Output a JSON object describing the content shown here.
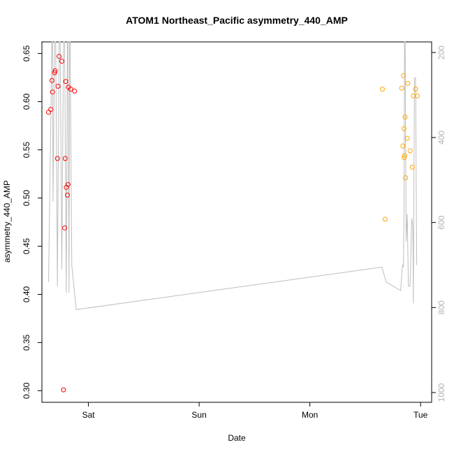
{
  "chart_data": {
    "type": "scatter",
    "title": "ATOM1 Northeast_Pacific asymmetry_440_AMP",
    "xlabel": "Date",
    "ylabel": "asymmetry_440_AMP",
    "x_tick_labels": [
      "Sat",
      "Sun",
      "Mon",
      "Tue"
    ],
    "x_ticks": [
      1.0,
      2.0,
      3.0,
      4.0
    ],
    "xlim": [
      0.58,
      4.1
    ],
    "ylim": [
      0.288,
      0.662
    ],
    "y_ticks": [
      0.3,
      0.35,
      0.4,
      0.45,
      0.5,
      0.55,
      0.6,
      0.65
    ],
    "y_tick_labels": [
      "0.30",
      "0.35",
      "0.40",
      "0.45",
      "0.50",
      "0.55",
      "0.60",
      "0.65"
    ],
    "y2_lim": [
      1023,
      175
    ],
    "y2_ticks": [
      200,
      400,
      600,
      800,
      1000
    ],
    "y2_tick_labels": [
      "200",
      "400",
      "600",
      "800",
      "1000"
    ],
    "grid": false,
    "series": [
      {
        "color": "#ff0000",
        "points": [
          {
            "x": 0.64,
            "y": 0.589
          },
          {
            "x": 0.66,
            "y": 0.592
          },
          {
            "x": 0.67,
            "y": 0.622
          },
          {
            "x": 0.675,
            "y": 0.61
          },
          {
            "x": 0.695,
            "y": 0.63
          },
          {
            "x": 0.7,
            "y": 0.632
          },
          {
            "x": 0.72,
            "y": 0.541
          },
          {
            "x": 0.725,
            "y": 0.616
          },
          {
            "x": 0.735,
            "y": 0.647
          },
          {
            "x": 0.76,
            "y": 0.642
          },
          {
            "x": 0.775,
            "y": 0.301
          },
          {
            "x": 0.785,
            "y": 0.469
          },
          {
            "x": 0.79,
            "y": 0.541
          },
          {
            "x": 0.795,
            "y": 0.621
          },
          {
            "x": 0.8,
            "y": 0.511
          },
          {
            "x": 0.81,
            "y": 0.503
          },
          {
            "x": 0.815,
            "y": 0.514
          },
          {
            "x": 0.82,
            "y": 0.615
          },
          {
            "x": 0.84,
            "y": 0.613
          },
          {
            "x": 0.875,
            "y": 0.611
          }
        ]
      },
      {
        "color": "#ffa500",
        "points": [
          {
            "x": 3.655,
            "y": 0.613
          },
          {
            "x": 3.68,
            "y": 0.478
          },
          {
            "x": 3.83,
            "y": 0.614
          },
          {
            "x": 3.84,
            "y": 0.554
          },
          {
            "x": 3.845,
            "y": 0.627
          },
          {
            "x": 3.85,
            "y": 0.572
          },
          {
            "x": 3.853,
            "y": 0.542
          },
          {
            "x": 3.856,
            "y": 0.544
          },
          {
            "x": 3.86,
            "y": 0.584
          },
          {
            "x": 3.865,
            "y": 0.521
          },
          {
            "x": 3.88,
            "y": 0.562
          },
          {
            "x": 3.885,
            "y": 0.619
          },
          {
            "x": 3.905,
            "y": 0.549
          },
          {
            "x": 3.925,
            "y": 0.532
          },
          {
            "x": 3.935,
            "y": 0.606
          },
          {
            "x": 3.955,
            "y": 0.613
          },
          {
            "x": 3.97,
            "y": 0.606
          }
        ]
      }
    ],
    "secondary_line": {
      "color": "#bebebe",
      "points": [
        [
          0.64,
          740
        ],
        [
          0.67,
          175
        ],
        [
          0.675,
          175
        ],
        [
          0.68,
          550
        ],
        [
          0.695,
          175
        ],
        [
          0.705,
          175
        ],
        [
          0.72,
          750
        ],
        [
          0.735,
          175
        ],
        [
          0.745,
          175
        ],
        [
          0.76,
          710
        ],
        [
          0.775,
          175
        ],
        [
          0.785,
          175
        ],
        [
          0.8,
          765
        ],
        [
          0.81,
          175
        ],
        [
          0.815,
          175
        ],
        [
          0.825,
          765
        ],
        [
          0.83,
          175
        ],
        [
          0.835,
          175
        ],
        [
          0.85,
          700
        ],
        [
          0.89,
          805
        ],
        [
          3.65,
          705
        ],
        [
          3.69,
          740
        ],
        [
          3.82,
          760
        ],
        [
          3.835,
          705
        ],
        [
          3.84,
          700
        ],
        [
          3.845,
          705
        ],
        [
          3.85,
          570
        ],
        [
          3.855,
          175
        ],
        [
          3.86,
          175
        ],
        [
          3.87,
          645
        ],
        [
          3.88,
          580
        ],
        [
          3.89,
          750
        ],
        [
          3.905,
          750
        ],
        [
          3.92,
          590
        ],
        [
          3.93,
          610
        ],
        [
          3.935,
          790
        ],
        [
          3.945,
          260
        ],
        [
          3.955,
          260
        ],
        [
          3.965,
          700
        ]
      ]
    }
  }
}
